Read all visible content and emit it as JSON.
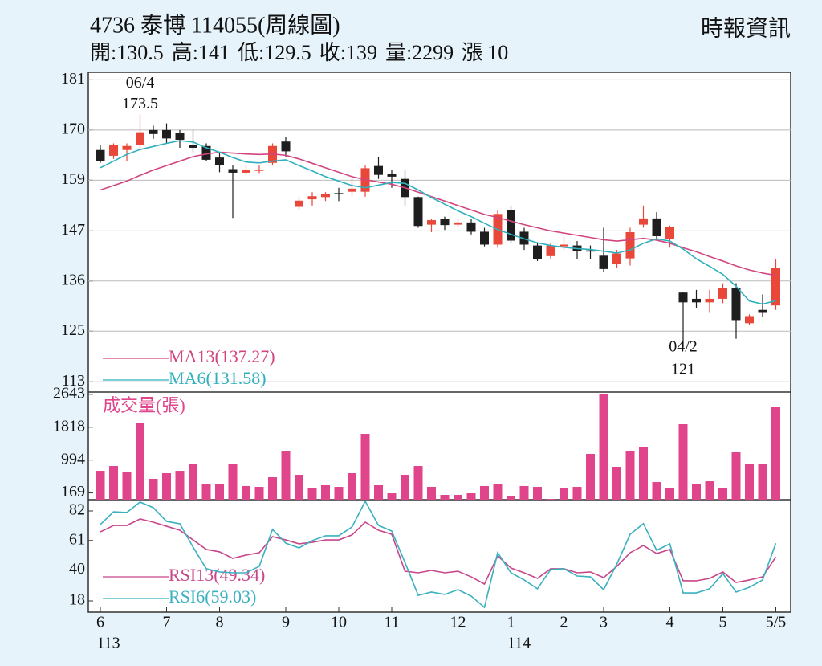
{
  "header": {
    "title": "4736  泰博 114055(周線圖)",
    "source": "時報資訊",
    "stats": [
      {
        "label": "開:",
        "value": 130.5
      },
      {
        "label": "高:",
        "value": 141
      },
      {
        "label": "低:",
        "value": 129.5
      },
      {
        "label": "收:",
        "value": 139
      },
      {
        "label": "量:",
        "value": 2299
      },
      {
        "label": "漲",
        "value": 10
      }
    ]
  },
  "chart_data": [
    {
      "type": "candlestick",
      "grid": true,
      "up_color": "#e8473a",
      "down_color": "#1e1e1e",
      "open": [
        165.5,
        164.2,
        165.5,
        166.6,
        170,
        170,
        169.3,
        166.6,
        166.4,
        163.8,
        161.2,
        160.4,
        160.8,
        162.6,
        167.4,
        152.7,
        154.4,
        154.9,
        155.8,
        156.1,
        156.1,
        161.9,
        160.2,
        159,
        154.9,
        148.7,
        149.9,
        148.7,
        149.2,
        147.1,
        144.2,
        152,
        147.1,
        144,
        141.6,
        143.8,
        144,
        142.9,
        141.7,
        139.8,
        141.1,
        148.7,
        150.1,
        145.4,
        133.4,
        132,
        131.2,
        132,
        134.4,
        126.5,
        129.5,
        130.5
      ],
      "high": [
        166.7,
        167,
        167,
        173.5,
        171,
        171.5,
        170,
        170,
        167,
        165,
        162,
        162,
        162,
        167,
        168.5,
        155,
        156,
        156,
        157,
        159,
        162,
        164,
        161,
        161,
        155,
        150,
        150.5,
        150,
        150,
        148,
        152,
        153,
        148,
        144.5,
        144.5,
        146,
        145,
        144,
        148,
        143,
        148,
        153,
        151.5,
        148.5,
        133.5,
        134,
        134,
        135.5,
        135.5,
        128.5,
        133,
        141
      ],
      "low": [
        162.6,
        163.5,
        163,
        166,
        168,
        167,
        166,
        165,
        163,
        160.5,
        150.2,
        160,
        160.3,
        162,
        164,
        152,
        153,
        154,
        154,
        155,
        155,
        159,
        157,
        153,
        148,
        147,
        147.5,
        148.2,
        146.5,
        143.8,
        143.5,
        144.5,
        143,
        140.5,
        141,
        143,
        141,
        141,
        138,
        139,
        139.5,
        148,
        145.5,
        143.5,
        121,
        130,
        129,
        131,
        123,
        126,
        128,
        129.5
      ],
      "close": [
        163.1,
        166.6,
        166.4,
        169.5,
        169.1,
        168.1,
        167.8,
        166,
        163.3,
        162.1,
        160.4,
        161.1,
        161.1,
        166.4,
        165.2,
        154.1,
        155.1,
        155.6,
        155.6,
        156.8,
        161.4,
        159.9,
        159.5,
        154.9,
        148.4,
        149.7,
        148.6,
        149.2,
        147.1,
        144.2,
        151.1,
        145.1,
        144.2,
        140.9,
        144,
        144.2,
        142.8,
        142.8,
        138.7,
        142.2,
        147,
        150.1,
        146.1,
        148.2,
        131.2,
        131.2,
        132,
        134.4,
        127.2,
        128.1,
        129,
        139
      ],
      "series": [
        {
          "name": "MA13(137.27)",
          "color": "#d2447f",
          "values": [
            156.5,
            157.5,
            158.5,
            159.8,
            161,
            162,
            163,
            164,
            164.6,
            165,
            164.8,
            164.6,
            164.5,
            164.6,
            164.3,
            163.5,
            162.5,
            161.5,
            160.5,
            159.5,
            158.8,
            158.3,
            157.8,
            157,
            156,
            155,
            154,
            153,
            152,
            151,
            150.3,
            149.5,
            148.7,
            148,
            147.3,
            146.8,
            146.3,
            145.8,
            145.3,
            145,
            145.3,
            145.6,
            145.2,
            144.5,
            143.5,
            142.6,
            141.5,
            140.5,
            139.4,
            138.5,
            137.8,
            137.27
          ]
        },
        {
          "name": "MA6(131.58)",
          "color": "#2fb0bd",
          "values": [
            161.5,
            163,
            164.5,
            165.6,
            166.3,
            167,
            167.6,
            167.3,
            166,
            165,
            163.8,
            162.8,
            162.6,
            163,
            163.3,
            162,
            160.8,
            159.5,
            158.5,
            157.5,
            157,
            157.6,
            158.2,
            158,
            156.5,
            154.8,
            153.3,
            151.8,
            150.5,
            149,
            147.6,
            146.5,
            145.5,
            144.6,
            144,
            143.6,
            143.3,
            143.1,
            142.7,
            142.3,
            143,
            144.5,
            145.5,
            145,
            143.2,
            141,
            139.3,
            137.5,
            134.8,
            131.5,
            130.8,
            131.58
          ]
        }
      ],
      "annotations": [
        {
          "date": "06/4",
          "value": 173.5
        },
        {
          "date": "04/2",
          "value": 121
        }
      ],
      "ylim": [
        111,
        183
      ],
      "yticks": [
        {
          "value": 181.3,
          "label": "181"
        },
        170,
        {
          "value": 158.7,
          "label": "159"
        },
        {
          "value": 147.3,
          "label": "147"
        },
        136,
        {
          "value": 124.7,
          "label": "125"
        },
        {
          "value": 113.3,
          "label": "113"
        }
      ]
    },
    {
      "type": "bar",
      "title": "成交量(張)",
      "color": "#e0458c",
      "values": [
        725,
        846,
        685,
        1934,
        524,
        665,
        725,
        887,
        403,
        383,
        887,
        343,
        322,
        564,
        1209,
        625,
        282,
        363,
        322,
        665,
        1652,
        363,
        161,
        625,
        846,
        322,
        121,
        121,
        161,
        343,
        383,
        101,
        343,
        322,
        20,
        282,
        322,
        1149,
        2643,
        826,
        1209,
        1330,
        443,
        282,
        1894,
        403,
        463,
        282,
        1189,
        887,
        907,
        2317
      ],
      "ylim": [
        0,
        2700
      ],
      "yticks": [
        2643,
        1818,
        994,
        169
      ]
    },
    {
      "type": "line",
      "series": [
        {
          "name": "RSI13(49.34)",
          "color": "#c8468a",
          "values": [
            67.1,
            71.7,
            71.7,
            76.3,
            74,
            71.1,
            68.3,
            61.4,
            54.6,
            52.9,
            48.3,
            50.6,
            52.3,
            63.7,
            61.4,
            58.6,
            59.7,
            61.4,
            61.4,
            64.9,
            74,
            68.3,
            65.4,
            39.1,
            38,
            39.7,
            38,
            39.1,
            35.1,
            30,
            50,
            41.4,
            38,
            34,
            40.9,
            40.9,
            38,
            38.6,
            34.6,
            42.6,
            52.3,
            57.4,
            51.7,
            54.6,
            32.3,
            32.3,
            34,
            38.6,
            31.1,
            32.9,
            35.1,
            49.34
          ]
        },
        {
          "name": "RSI6(59.03)",
          "color": "#3ab0c0",
          "values": [
            72.3,
            81.4,
            80.9,
            88.3,
            84.3,
            74.6,
            72.9,
            56.3,
            40.9,
            38.6,
            38,
            38,
            42.6,
            68.9,
            59.1,
            55.7,
            60.9,
            64.3,
            64.3,
            70.6,
            88.9,
            71.7,
            67.7,
            45.4,
            22,
            24.3,
            22.6,
            26,
            21.4,
            13.4,
            52.3,
            38,
            32.9,
            26.6,
            40.3,
            40.9,
            35.7,
            35.1,
            26,
            44.3,
            65.4,
            72.9,
            54,
            58.6,
            23.7,
            23.7,
            26.6,
            37.4,
            24.3,
            27.7,
            32.9,
            59.03
          ]
        }
      ],
      "categories": [
        "6",
        null,
        null,
        null,
        null,
        "7",
        null,
        null,
        null,
        "8",
        null,
        null,
        null,
        null,
        "9",
        null,
        null,
        null,
        "10",
        null,
        null,
        null,
        "11",
        null,
        null,
        null,
        null,
        "12",
        null,
        null,
        null,
        "1",
        null,
        null,
        null,
        "2",
        null,
        null,
        "3",
        null,
        null,
        null,
        null,
        "4",
        null,
        null,
        null,
        "5",
        null,
        null,
        null,
        "5/5"
      ],
      "year_labels": [
        "113",
        null,
        null,
        null,
        null,
        null,
        null,
        null,
        null,
        null,
        null,
        null,
        null,
        null,
        null,
        null,
        null,
        null,
        null,
        null,
        null,
        null,
        null,
        null,
        null,
        null,
        null,
        null,
        null,
        null,
        null,
        "114",
        null,
        null,
        null,
        null,
        null,
        null,
        null,
        null,
        null,
        null,
        null,
        null,
        null,
        null,
        null,
        null,
        null,
        null,
        null,
        null
      ],
      "ylim": [
        10,
        90
      ],
      "yticks": [
        82,
        61,
        40,
        18
      ]
    }
  ]
}
